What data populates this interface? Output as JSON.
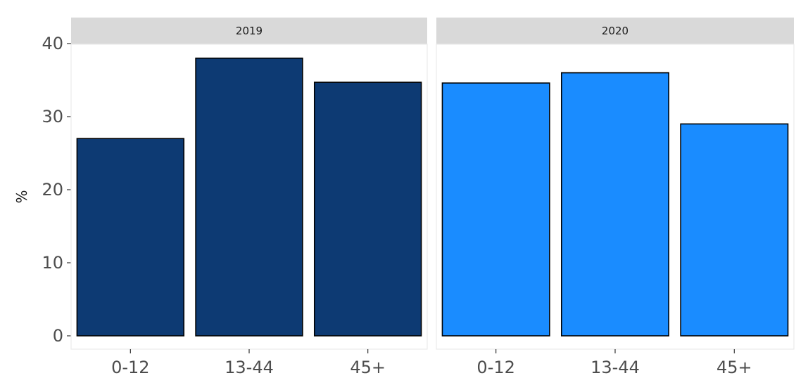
{
  "chart_data": {
    "type": "bar",
    "ylabel": "%",
    "xlabel": "",
    "ylim": [
      0,
      42
    ],
    "yticks": [
      0,
      10,
      20,
      30,
      40
    ],
    "categories": [
      "0-12",
      "13-44",
      "45+"
    ],
    "panels": [
      {
        "name": "2019",
        "color": "#0d3a73",
        "values": [
          27,
          38,
          34.7
        ]
      },
      {
        "name": "2020",
        "color": "#1a8cff",
        "values": [
          34.6,
          36,
          29
        ]
      }
    ],
    "grid": false,
    "legend": "none"
  }
}
